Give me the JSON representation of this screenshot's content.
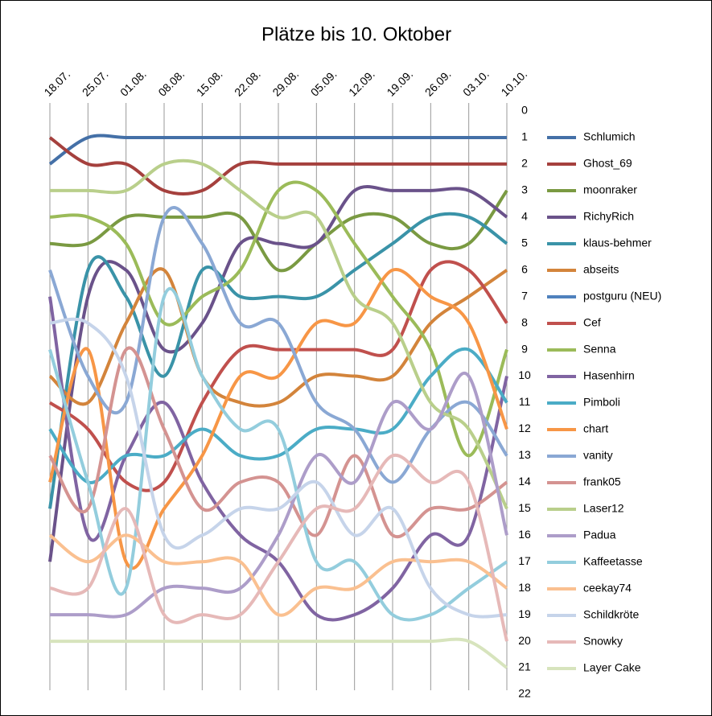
{
  "chart_data": {
    "type": "line",
    "title": "Plätze bis 10. Oktober",
    "categories": [
      "18.07.",
      "25.07.",
      "01.08.",
      "08.08.",
      "15.08.",
      "22.08.",
      "29.08.",
      "05.09.",
      "12.09.",
      "19.09.",
      "26.09.",
      "03.10.",
      "10.10."
    ],
    "ylim": [
      0,
      22
    ],
    "yticks": [
      0,
      1,
      2,
      3,
      4,
      5,
      6,
      7,
      8,
      9,
      10,
      11,
      12,
      13,
      14,
      15,
      16,
      17,
      18,
      19,
      20,
      21,
      22
    ],
    "y_inverted": true,
    "smooth": true,
    "grid": "x",
    "legend": "right",
    "series": [
      {
        "name": "Schlumich",
        "color": "#4470a7",
        "values": [
          2,
          1,
          1,
          1,
          1,
          1,
          1,
          1,
          1,
          1,
          1,
          1,
          1
        ]
      },
      {
        "name": "Ghost_69",
        "color": "#a5403d",
        "values": [
          1,
          2,
          2,
          3,
          3,
          2,
          2,
          2,
          2,
          2,
          2,
          2,
          2
        ]
      },
      {
        "name": "moonraker",
        "color": "#7a9a42",
        "values": [
          5,
          5,
          4,
          4,
          4,
          4,
          6,
          5,
          4,
          4,
          5,
          5,
          3
        ]
      },
      {
        "name": "RichyRich",
        "color": "#6a528a",
        "values": [
          17,
          7,
          6,
          9,
          8,
          5,
          5,
          5,
          3,
          3,
          3,
          3,
          4
        ]
      },
      {
        "name": "klaus-behmer",
        "color": "#3a93a8",
        "values": [
          15,
          6,
          7,
          10,
          6,
          7,
          7,
          7,
          6,
          5,
          4,
          4,
          5
        ]
      },
      {
        "name": "abseits",
        "color": "#d3843b",
        "values": [
          10,
          11,
          8,
          6,
          10,
          11,
          11,
          10,
          10,
          10,
          8,
          7,
          6
        ]
      },
      {
        "name": "postguru (NEU)",
        "color": "#4f81bd",
        "values": [
          null,
          null,
          null,
          null,
          null,
          null,
          null,
          null,
          null,
          null,
          null,
          null,
          7
        ]
      },
      {
        "name": "Cef",
        "color": "#c0504d",
        "values": [
          11,
          12,
          14,
          14,
          11,
          9,
          9,
          9,
          9,
          9,
          6,
          6,
          8
        ]
      },
      {
        "name": "Senna",
        "color": "#9bbb59",
        "values": [
          4,
          4,
          5,
          8,
          7,
          6,
          3,
          3,
          5,
          7,
          9,
          13,
          9
        ]
      },
      {
        "name": "Hasenhirn",
        "color": "#8064a2",
        "values": [
          7,
          16,
          13,
          11,
          14,
          16,
          17,
          19,
          19,
          18,
          16,
          16,
          10
        ]
      },
      {
        "name": "Pimboli",
        "color": "#4bacc6",
        "values": [
          12,
          14,
          13,
          13,
          12,
          13,
          13,
          12,
          12,
          12,
          10,
          9,
          11
        ]
      },
      {
        "name": "chart",
        "color": "#f79646",
        "values": [
          14,
          9,
          17,
          15,
          13,
          10,
          10,
          8,
          8,
          6,
          7,
          8,
          12
        ]
      },
      {
        "name": "vanity",
        "color": "#8aa8d4",
        "values": [
          6,
          10,
          11,
          4,
          5,
          8,
          8,
          11,
          12,
          14,
          12,
          11,
          13
        ]
      },
      {
        "name": "frank05",
        "color": "#d49391",
        "values": [
          13,
          15,
          9,
          12,
          15,
          14,
          14,
          16,
          13,
          16,
          15,
          15,
          14
        ]
      },
      {
        "name": "Laser12",
        "color": "#b9cf8b",
        "values": [
          3,
          3,
          3,
          2,
          2,
          3,
          4,
          4,
          7,
          8,
          11,
          12,
          15
        ]
      },
      {
        "name": "Padua",
        "color": "#ad9dc9",
        "values": [
          19,
          19,
          19,
          18,
          18,
          18,
          16,
          13,
          14,
          11,
          12,
          10,
          16
        ]
      },
      {
        "name": "Kaffeetasse",
        "color": "#93cddd",
        "values": [
          9,
          14,
          18,
          7,
          10,
          12,
          12,
          17,
          17,
          19,
          19,
          18,
          17
        ]
      },
      {
        "name": "ceekay74",
        "color": "#fac090",
        "values": [
          16,
          17,
          16,
          17,
          17,
          17,
          19,
          18,
          18,
          17,
          17,
          17,
          18
        ]
      },
      {
        "name": "Schildkröte",
        "color": "#c6d4ea",
        "values": [
          8,
          8,
          10,
          16,
          16,
          15,
          15,
          14,
          16,
          15,
          18,
          19,
          19
        ]
      },
      {
        "name": "Snowky",
        "color": "#e6b9b8",
        "values": [
          18,
          18,
          15,
          19,
          19,
          19,
          17,
          15,
          15,
          13,
          14,
          14,
          20
        ]
      },
      {
        "name": "Layer Cake",
        "color": "#d7e4bd",
        "values": [
          20,
          20,
          20,
          20,
          20,
          20,
          20,
          20,
          20,
          20,
          20,
          20,
          21
        ]
      }
    ]
  }
}
